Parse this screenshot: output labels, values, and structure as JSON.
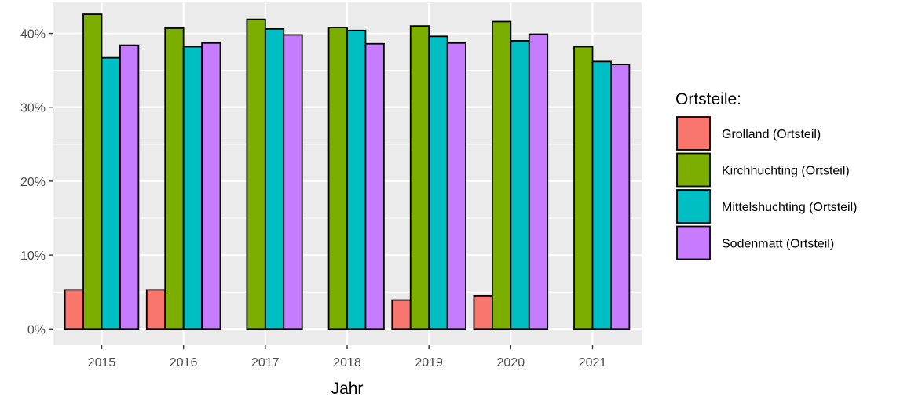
{
  "chart_data": {
    "type": "bar",
    "title": "",
    "xlabel": "Jahr",
    "ylabel": "",
    "categories": [
      "2015",
      "2016",
      "2017",
      "2018",
      "2019",
      "2020",
      "2021"
    ],
    "y_ticks": [
      "0%",
      "10%",
      "20%",
      "30%",
      "40%"
    ],
    "ylim": [
      -2.2,
      44.2
    ],
    "grid": true,
    "legend_position": "right",
    "legend_title": "Ortsteile:",
    "series": [
      {
        "name": "Grolland (Ortsteil)",
        "color": "#F8766D",
        "values": [
          5.3,
          5.3,
          null,
          null,
          3.9,
          4.5,
          null
        ]
      },
      {
        "name": "Kirchhuchting (Ortsteil)",
        "color": "#7CAE00",
        "values": [
          42.6,
          40.7,
          41.9,
          40.8,
          41.0,
          41.6,
          38.2
        ]
      },
      {
        "name": "Mittelshuchting (Ortsteil)",
        "color": "#00BFC4",
        "values": [
          36.7,
          38.2,
          40.6,
          40.4,
          39.6,
          39.0,
          36.2
        ]
      },
      {
        "name": "Sodenmatt (Ortsteil)",
        "color": "#C77CFF",
        "values": [
          38.4,
          38.7,
          39.8,
          38.6,
          38.7,
          39.9,
          35.8
        ]
      }
    ]
  }
}
